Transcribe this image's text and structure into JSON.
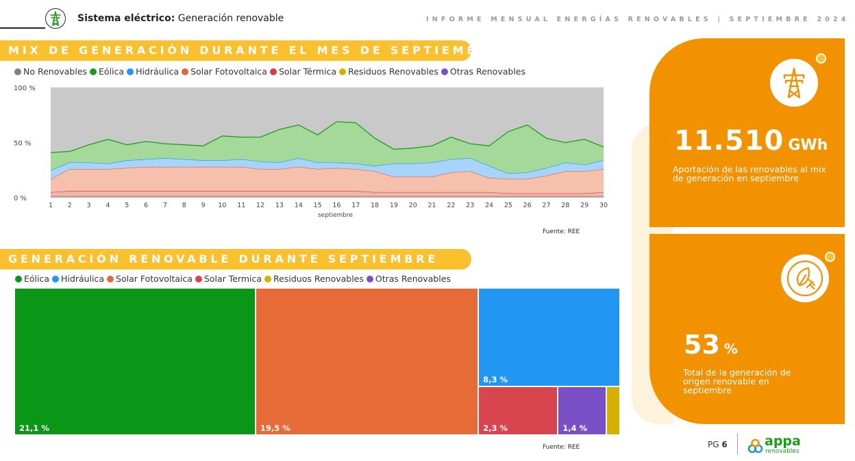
{
  "header": {
    "title_bold": "Sistema eléctrico:",
    "title_rest": " Generación renovable",
    "report": "INFORME MENSUAL ENERGÍAS RENOVABLES | SEPTIEMBRE 2024"
  },
  "section1": {
    "title": "MIX DE GENERACIÓN DURANTE EL MES DE SEPTIEMBRE",
    "source": "Fuente: REE"
  },
  "section2": {
    "title": "GENERACIÓN RENOVABLE DURANTE SEPTIEMBRE",
    "source": "Fuente: REE"
  },
  "chart_data": [
    {
      "type": "area",
      "stacked": true,
      "xlabel": "septiembre",
      "x": [
        1,
        2,
        3,
        4,
        5,
        6,
        7,
        8,
        9,
        10,
        11,
        12,
        13,
        14,
        15,
        16,
        17,
        18,
        19,
        20,
        21,
        22,
        23,
        24,
        25,
        26,
        27,
        28,
        29,
        30
      ],
      "ylim": [
        0,
        100
      ],
      "yticks": [
        "0 %",
        "50 %",
        "100 %"
      ],
      "legend_position": "top",
      "series": [
        {
          "name": "No Renovables",
          "color": "#7f7f7f"
        },
        {
          "name": "Eólica",
          "color": "#1a9e1a",
          "values": [
            16,
            10,
            16,
            22,
            14,
            16,
            13,
            13,
            13,
            22,
            20,
            22,
            30,
            30,
            25,
            37,
            37,
            25,
            13,
            14,
            15,
            20,
            13,
            18,
            38,
            43,
            27,
            18,
            23,
            12
          ]
        },
        {
          "name": "Hidráulica",
          "color": "#2196f3",
          "values": [
            8,
            6,
            6,
            5,
            7,
            7,
            8,
            7,
            6,
            6,
            7,
            7,
            6,
            8,
            6,
            5,
            5,
            5,
            12,
            12,
            13,
            12,
            12,
            11,
            5,
            6,
            7,
            8,
            6,
            8
          ]
        },
        {
          "name": "Solar Fotovoltaica",
          "color": "#e8603c",
          "values": [
            12,
            20,
            20,
            20,
            21,
            22,
            22,
            22,
            22,
            22,
            22,
            20,
            20,
            22,
            20,
            21,
            20,
            19,
            14,
            14,
            14,
            18,
            19,
            13,
            13,
            13,
            16,
            20,
            20,
            21
          ]
        },
        {
          "name": "Solar Térmica",
          "color": "#d73a4a",
          "values": [
            3,
            4,
            4,
            4,
            4,
            4,
            4,
            4,
            4,
            4,
            4,
            4,
            4,
            4,
            4,
            4,
            4,
            3,
            3,
            3,
            3,
            3,
            3,
            3,
            2,
            2,
            2,
            2,
            2,
            3
          ]
        },
        {
          "name": "Residuos Renovables",
          "color": "#d4b000",
          "values": [
            1,
            1,
            1,
            1,
            1,
            1,
            1,
            1,
            1,
            1,
            1,
            1,
            1,
            1,
            1,
            1,
            1,
            1,
            1,
            1,
            1,
            1,
            1,
            1,
            1,
            1,
            1,
            1,
            1,
            1
          ]
        },
        {
          "name": "Otras Renovables",
          "color": "#7b4fc6",
          "values": [
            1,
            1,
            1,
            1,
            1,
            1,
            1,
            1,
            1,
            1,
            1,
            1,
            1,
            1,
            1,
            1,
            1,
            1,
            1,
            1,
            1,
            1,
            1,
            1,
            1,
            1,
            1,
            1,
            1,
            1
          ]
        }
      ]
    },
    {
      "type": "treemap",
      "legend_position": "top",
      "legend": [
        {
          "name": "Eólica",
          "color": "#0a9616"
        },
        {
          "name": "Hidráulica",
          "color": "#2196f3"
        },
        {
          "name": "Solar Fotovoltaica",
          "color": "#e66b37"
        },
        {
          "name": "Solar Termica",
          "color": "#d9454f"
        },
        {
          "name": "Residuos Renovables",
          "color": "#d4b000"
        },
        {
          "name": "Otras Renovables",
          "color": "#7b4fc6"
        }
      ],
      "items": [
        {
          "name": "Eólica",
          "value": 21.1,
          "label": "21,1 %",
          "color": "#0a9616"
        },
        {
          "name": "Solar Fotovoltaica",
          "value": 19.5,
          "label": "19,5 %",
          "color": "#e66b37"
        },
        {
          "name": "Hidráulica",
          "value": 8.3,
          "label": "8,3 %",
          "color": "#2196f3"
        },
        {
          "name": "Solar Termica",
          "value": 2.3,
          "label": "2,3 %",
          "color": "#d9454f"
        },
        {
          "name": "Otras Renovables",
          "value": 1.4,
          "label": "1,4 %",
          "color": "#7b4fc6"
        },
        {
          "name": "Residuos Renovables",
          "value": 0.4,
          "label": "",
          "color": "#d4b000"
        }
      ]
    }
  ],
  "kpis": {
    "card1": {
      "value": "11.510",
      "unit": "GWh",
      "desc": "Aportación de las renovables al mix de generación en septiembre",
      "icon": "power-tower-icon"
    },
    "card2": {
      "value": "53",
      "unit": "%",
      "desc": "Total de la generación de origen renovable en septiembre",
      "icon": "leaf-plug-icon"
    }
  },
  "footer": {
    "page_prefix": "PG ",
    "page_number": "6",
    "logo_text": "appa",
    "logo_sub": "renovables"
  },
  "colors": {
    "accent": "#f39200",
    "section_bar": "#fbc02d"
  }
}
